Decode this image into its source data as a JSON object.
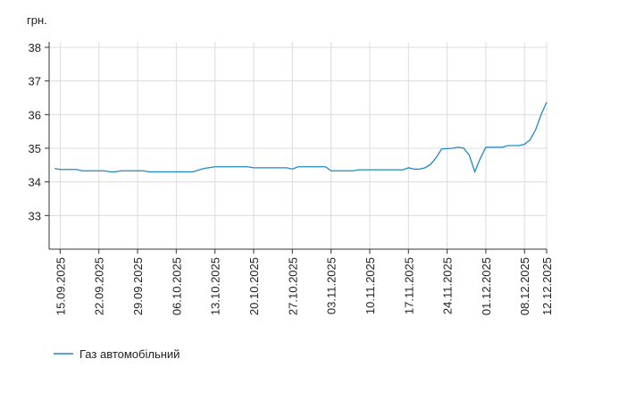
{
  "chart_data": {
    "type": "line",
    "y_label": "грн.",
    "x": [
      "14.09.2025",
      "15.09.2025",
      "18.09.2025",
      "19.09.2025",
      "23.09.2025",
      "24.09.2025",
      "25.09.2025",
      "26.09.2025",
      "30.09.2025",
      "01.10.2025",
      "09.10.2025",
      "11.10.2025",
      "13.10.2025",
      "19.10.2025",
      "20.10.2025",
      "26.10.2025",
      "27.10.2025",
      "28.10.2025",
      "02.11.2025",
      "03.11.2025",
      "07.11.2025",
      "08.11.2025",
      "16.11.2025",
      "17.11.2025",
      "18.11.2025",
      "19.11.2025",
      "20.11.2025",
      "21.11.2025",
      "22.11.2025",
      "23.11.2025",
      "25.11.2025",
      "26.11.2025",
      "27.11.2025",
      "28.11.2025",
      "29.11.2025",
      "30.11.2025",
      "01.12.2025",
      "04.12.2025",
      "05.12.2025",
      "07.12.2025",
      "08.12.2025",
      "09.12.2025",
      "10.12.2025",
      "11.12.2025",
      "12.12.2025"
    ],
    "series": [
      {
        "name": "Газ автомобільний",
        "color": "#1f8ac0",
        "values": [
          34.4,
          34.37,
          34.37,
          34.33,
          34.33,
          34.3,
          34.3,
          34.33,
          34.33,
          34.3,
          34.3,
          34.4,
          34.45,
          34.45,
          34.42,
          34.42,
          34.38,
          34.45,
          34.45,
          34.33,
          34.33,
          34.36,
          34.36,
          34.42,
          34.38,
          34.38,
          34.42,
          34.52,
          34.72,
          34.98,
          35.0,
          35.03,
          35.0,
          34.8,
          34.3,
          34.7,
          35.03,
          35.03,
          35.08,
          35.08,
          35.12,
          35.25,
          35.55,
          36.0,
          36.37
        ]
      }
    ],
    "xlim": [
      "13.09.2025",
      "12.12.2025"
    ],
    "xticks": [
      "15.09.2025",
      "22.09.2025",
      "29.09.2025",
      "06.10.2025",
      "13.10.2025",
      "20.10.2025",
      "27.10.2025",
      "03.11.2025",
      "10.11.2025",
      "17.11.2025",
      "24.11.2025",
      "01.12.2025",
      "08.12.2025",
      "12.12.2025"
    ],
    "ylim": [
      32,
      38
    ],
    "yticks": [
      33,
      34,
      35,
      36,
      37,
      38
    ],
    "grid": true
  }
}
